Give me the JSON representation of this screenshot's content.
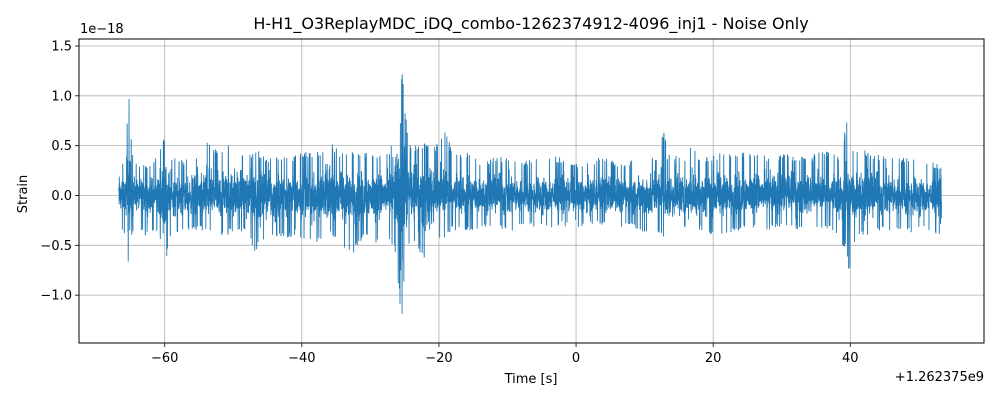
{
  "chart_data": {
    "type": "line",
    "title": "H-H1_O3ReplayMDC_iDQ_combo-1262374912-4096_inj1 - Noise Only",
    "xlabel": "Time [s]",
    "ylabel": "Strain",
    "x_offset_label": "+1.262375e9",
    "y_scale_label": "1e−18",
    "xlim": [
      -72.5,
      59.5
    ],
    "ylim": [
      -1.48,
      1.57
    ],
    "x_ticks": [
      -60,
      -40,
      -20,
      0,
      20,
      40
    ],
    "x_tick_labels": [
      "−60",
      "−40",
      "−20",
      "0",
      "20",
      "40"
    ],
    "y_ticks": [
      -1.0,
      -0.5,
      0.0,
      0.5,
      1.0,
      1.5
    ],
    "y_tick_labels": [
      "−1.0",
      "−0.5",
      "0.0",
      "0.5",
      "1.0",
      "1.5"
    ],
    "grid": true,
    "line_color": "#1f77b4",
    "series": [
      {
        "x_start": -66.7,
        "x_end": 53.3,
        "envelope": [
          [
            -66.7,
            0.38,
            -0.35
          ],
          [
            -66.0,
            0.35,
            -0.4
          ],
          [
            -65.6,
            0.62,
            -0.52
          ],
          [
            -65.25,
            1.03,
            -0.79
          ],
          [
            -64.8,
            0.48,
            -0.45
          ],
          [
            -64.0,
            0.32,
            -0.3
          ],
          [
            -63.0,
            0.33,
            -0.42
          ],
          [
            -62.0,
            0.3,
            -0.35
          ],
          [
            -61.0,
            0.42,
            -0.4
          ],
          [
            -59.9,
            0.62,
            -0.72
          ],
          [
            -59.0,
            0.42,
            -0.38
          ],
          [
            -58.0,
            0.35,
            -0.38
          ],
          [
            -56.0,
            0.38,
            -0.34
          ],
          [
            -54.0,
            0.55,
            -0.37
          ],
          [
            -52.0,
            0.45,
            -0.42
          ],
          [
            -50.0,
            0.55,
            -0.38
          ],
          [
            -48.0,
            0.4,
            -0.35
          ],
          [
            -46.8,
            0.48,
            -0.58
          ],
          [
            -45.0,
            0.38,
            -0.4
          ],
          [
            -43.0,
            0.42,
            -0.45
          ],
          [
            -41.0,
            0.4,
            -0.4
          ],
          [
            -39.0,
            0.45,
            -0.45
          ],
          [
            -38.0,
            0.42,
            -0.48
          ],
          [
            -36.0,
            0.55,
            -0.4
          ],
          [
            -35.0,
            0.48,
            -0.45
          ],
          [
            -34.0,
            0.42,
            -0.52
          ],
          [
            -32.5,
            0.48,
            -0.58
          ],
          [
            -31.0,
            0.45,
            -0.42
          ],
          [
            -29.0,
            0.4,
            -0.48
          ],
          [
            -27.5,
            0.42,
            -0.4
          ],
          [
            -26.5,
            0.65,
            -0.55
          ],
          [
            -25.9,
            1.05,
            -0.95
          ],
          [
            -25.5,
            1.43,
            -1.35
          ],
          [
            -25.0,
            0.95,
            -0.85
          ],
          [
            -24.5,
            0.55,
            -0.55
          ],
          [
            -24.0,
            0.48,
            -0.5
          ],
          [
            -23.0,
            0.55,
            -0.55
          ],
          [
            -22.0,
            0.52,
            -0.68
          ],
          [
            -20.0,
            0.52,
            -0.45
          ],
          [
            -19.0,
            0.72,
            -0.45
          ],
          [
            -18.0,
            0.4,
            -0.35
          ],
          [
            -16.0,
            0.45,
            -0.35
          ],
          [
            -14.0,
            0.35,
            -0.35
          ],
          [
            -12.0,
            0.38,
            -0.3
          ],
          [
            -10.0,
            0.4,
            -0.38
          ],
          [
            -8.0,
            0.35,
            -0.3
          ],
          [
            -6.0,
            0.38,
            -0.32
          ],
          [
            -4.0,
            0.4,
            -0.35
          ],
          [
            -2.0,
            0.38,
            -0.3
          ],
          [
            0.0,
            0.32,
            -0.35
          ],
          [
            2.0,
            0.35,
            -0.3
          ],
          [
            4.0,
            0.4,
            -0.3
          ],
          [
            6.0,
            0.32,
            -0.32
          ],
          [
            8.0,
            0.35,
            -0.3
          ],
          [
            10.0,
            0.4,
            -0.38
          ],
          [
            11.0,
            0.38,
            -0.45
          ],
          [
            12.0,
            0.42,
            -0.4
          ],
          [
            12.7,
            0.68,
            -0.42
          ],
          [
            13.5,
            0.45,
            -0.45
          ],
          [
            14.5,
            0.42,
            -0.4
          ],
          [
            16.0,
            0.4,
            -0.35
          ],
          [
            17.0,
            0.55,
            -0.38
          ],
          [
            18.0,
            0.4,
            -0.35
          ],
          [
            20.0,
            0.4,
            -0.4
          ],
          [
            22.0,
            0.45,
            -0.38
          ],
          [
            24.0,
            0.45,
            -0.35
          ],
          [
            26.0,
            0.42,
            -0.32
          ],
          [
            28.0,
            0.4,
            -0.35
          ],
          [
            30.0,
            0.42,
            -0.32
          ],
          [
            32.0,
            0.4,
            -0.35
          ],
          [
            34.0,
            0.38,
            -0.32
          ],
          [
            36.0,
            0.48,
            -0.35
          ],
          [
            37.5,
            0.42,
            -0.35
          ],
          [
            38.5,
            0.4,
            -0.48
          ],
          [
            39.5,
            0.78,
            -0.55
          ],
          [
            39.8,
            0.55,
            -0.8
          ],
          [
            40.5,
            0.45,
            -0.5
          ],
          [
            41.5,
            0.55,
            -0.42
          ],
          [
            43.0,
            0.4,
            -0.4
          ],
          [
            45.0,
            0.42,
            -0.35
          ],
          [
            47.0,
            0.4,
            -0.35
          ],
          [
            49.0,
            0.38,
            -0.38
          ],
          [
            51.0,
            0.35,
            -0.35
          ],
          [
            52.5,
            0.32,
            -0.4
          ],
          [
            53.3,
            0.3,
            -0.48
          ]
        ]
      }
    ]
  }
}
